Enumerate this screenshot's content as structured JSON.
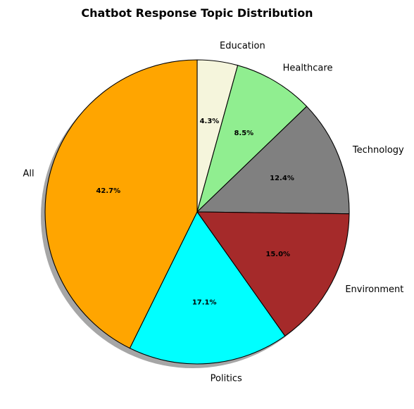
{
  "chart_data": {
    "type": "pie",
    "title": "Chatbot Response Topic Distribution",
    "shadow": true,
    "start_angle_deg": 90,
    "direction": "clockwise",
    "slices": [
      {
        "label": "Education",
        "value": 4.3,
        "pct_label": "4.3%",
        "color": "#f5f5dc"
      },
      {
        "label": "Healthcare",
        "value": 8.5,
        "pct_label": "8.5%",
        "color": "#90ee90"
      },
      {
        "label": "Technology",
        "value": 12.4,
        "pct_label": "12.4%",
        "color": "#808080"
      },
      {
        "label": "Environment",
        "value": 15.0,
        "pct_label": "15.0%",
        "color": "#a52a2a"
      },
      {
        "label": "Politics",
        "value": 17.1,
        "pct_label": "17.1%",
        "color": "#00ffff"
      },
      {
        "label": "All",
        "value": 42.7,
        "pct_label": "42.7%",
        "color": "#ffa500"
      }
    ]
  }
}
